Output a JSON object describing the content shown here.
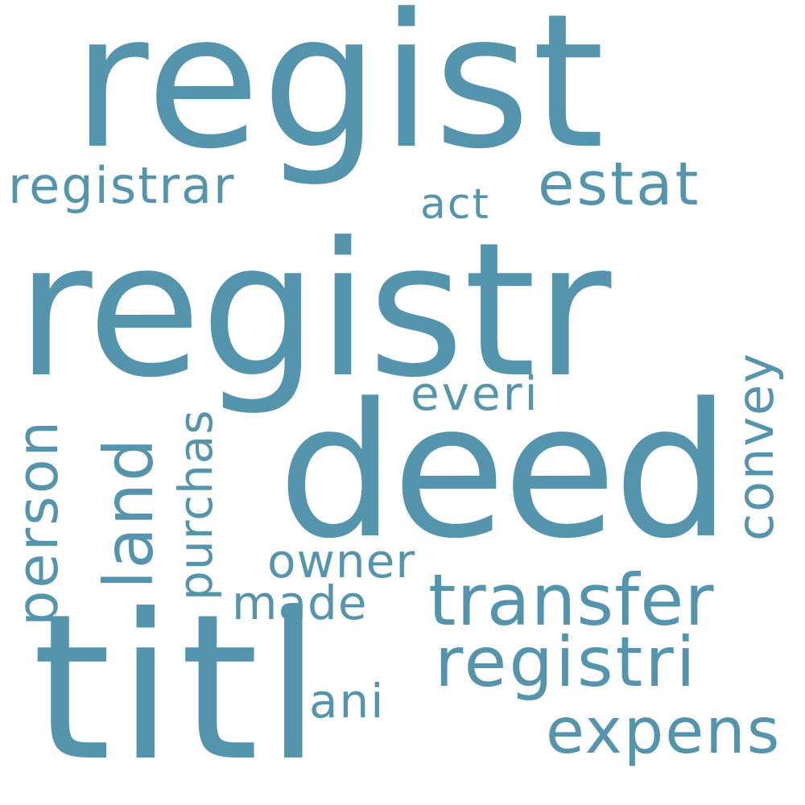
{
  "word_color": "#5494ad",
  "background": "#ffffff",
  "words": {
    "regist": "regist",
    "registr": "registr",
    "deed": "deed",
    "titl": "titl",
    "registrar": "registrar",
    "act": "act",
    "estat": "estat",
    "person": "person",
    "land": "land",
    "purchas": "purchas",
    "everi": "everi",
    "convey": "convey",
    "owner": "owner",
    "made": "made",
    "transfer": "transfer",
    "registri": "registri",
    "ani": "ani",
    "expens": "expens"
  }
}
